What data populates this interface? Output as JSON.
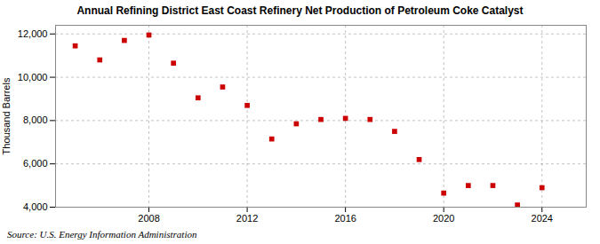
{
  "chart_data": {
    "type": "scatter",
    "title": "Annual Refining District East Coast Refinery Net Production of Petroleum Coke Catalyst",
    "ylabel": "Thousand Barrels",
    "annotations": [
      "Source: U.S. Energy Information Administration"
    ],
    "x": [
      2005,
      2006,
      2007,
      2008,
      2009,
      2010,
      2011,
      2012,
      2013,
      2014,
      2015,
      2016,
      2017,
      2018,
      2019,
      2020,
      2021,
      2022,
      2023,
      2024
    ],
    "values": [
      11450,
      10800,
      11700,
      11950,
      10650,
      9050,
      9550,
      8700,
      7150,
      7850,
      8050,
      8100,
      8050,
      7500,
      6200,
      4650,
      5000,
      5000,
      4100,
      4900
    ],
    "color": "#cc0000",
    "marker": "square",
    "xlim": [
      2004.2,
      2025.8
    ],
    "xticks": [
      2008,
      2012,
      2016,
      2020,
      2024
    ],
    "ylim": [
      4000,
      12400
    ],
    "yticks": [
      {
        "value": 4000,
        "label": "4,000"
      },
      {
        "value": 6000,
        "label": "6,000"
      },
      {
        "value": 8000,
        "label": "8,000"
      },
      {
        "value": 10000,
        "label": "10,000"
      },
      {
        "value": 12000,
        "label": "12,000"
      }
    ],
    "grid": true
  }
}
